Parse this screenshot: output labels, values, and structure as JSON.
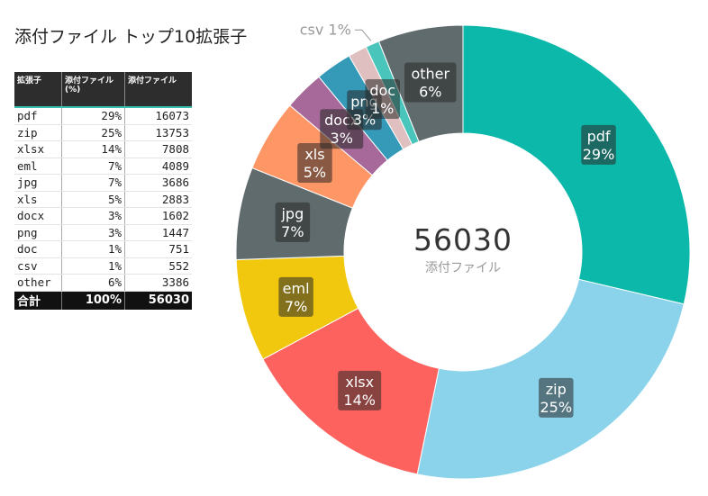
{
  "title": "添付ファイル トップ10拡張子",
  "table": {
    "headers": [
      "拡張子",
      "添付ファイル (%)",
      "添付ファイル"
    ],
    "rows": [
      {
        "ext": "pdf",
        "pct": "29%",
        "count": "16073"
      },
      {
        "ext": "zip",
        "pct": "25%",
        "count": "13753"
      },
      {
        "ext": "xlsx",
        "pct": "14%",
        "count": "7808"
      },
      {
        "ext": "eml",
        "pct": "7%",
        "count": "4089"
      },
      {
        "ext": "jpg",
        "pct": "7%",
        "count": "3686"
      },
      {
        "ext": "xls",
        "pct": "5%",
        "count": "2883"
      },
      {
        "ext": "docx",
        "pct": "3%",
        "count": "1602"
      },
      {
        "ext": "png",
        "pct": "3%",
        "count": "1447"
      },
      {
        "ext": "doc",
        "pct": "1%",
        "count": "751"
      },
      {
        "ext": "csv",
        "pct": "1%",
        "count": "552"
      },
      {
        "ext": "other",
        "pct": "6%",
        "count": "3386"
      }
    ],
    "total": {
      "label": "合計",
      "pct": "100%",
      "count": "56030"
    }
  },
  "chart_data": {
    "type": "pie",
    "variant": "donut",
    "title": "添付ファイル トップ10拡張子",
    "center_value": "56030",
    "center_label": "添付ファイル",
    "slices": [
      {
        "label": "pdf",
        "value": 16073,
        "pct_label": "29%",
        "color": "#0cb8a9"
      },
      {
        "label": "zip",
        "value": 13753,
        "pct_label": "25%",
        "color": "#8ad3ea"
      },
      {
        "label": "xlsx",
        "value": 7808,
        "pct_label": "14%",
        "color": "#fd625e"
      },
      {
        "label": "eml",
        "value": 4089,
        "pct_label": "7%",
        "color": "#f2c80f"
      },
      {
        "label": "jpg",
        "value": 3686,
        "pct_label": "7%",
        "color": "#5f6b6d"
      },
      {
        "label": "xls",
        "value": 2883,
        "pct_label": "5%",
        "color": "#fe9666"
      },
      {
        "label": "docx",
        "value": 1602,
        "pct_label": "3%",
        "color": "#a66999"
      },
      {
        "label": "png",
        "value": 1447,
        "pct_label": "3%",
        "color": "#3599b8"
      },
      {
        "label": "doc",
        "value": 751,
        "pct_label": "1%",
        "color": "#dfbfbf"
      },
      {
        "label": "csv",
        "value": 552,
        "pct_label": "1%",
        "color": "#4ac5bb"
      },
      {
        "label": "other",
        "value": 3386,
        "pct_label": "6%",
        "color": "#5f6b6d"
      }
    ]
  }
}
